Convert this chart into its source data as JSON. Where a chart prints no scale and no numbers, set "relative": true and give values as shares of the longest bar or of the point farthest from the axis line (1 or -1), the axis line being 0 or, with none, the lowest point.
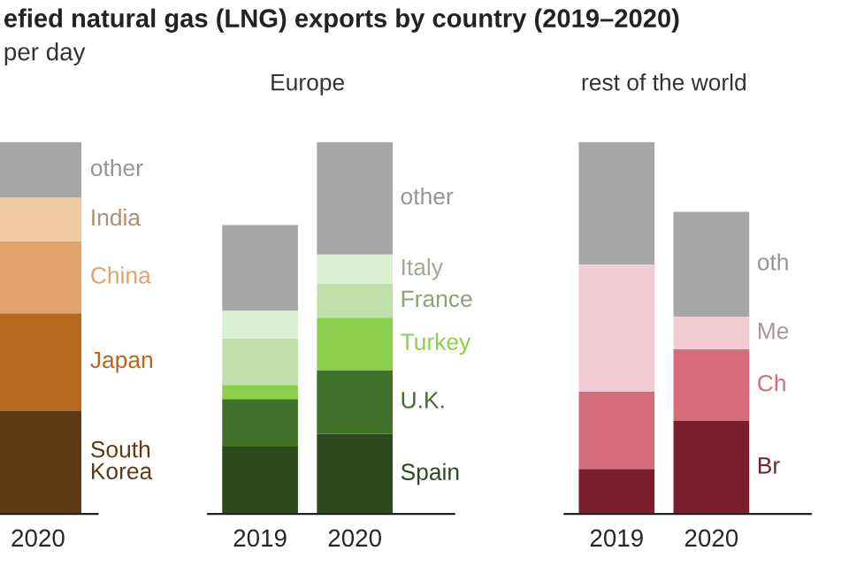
{
  "chart_data": [
    {
      "type": "bar",
      "stacked": true,
      "relative": true,
      "title": "efied natural gas (LNG) exports by country (2019–2020)",
      "subtitle": "per day",
      "categories": [
        "2020"
      ],
      "series": [
        {
          "name": "South Korea",
          "color": "#5e3a17",
          "values": [
            0.278
          ]
        },
        {
          "name": "Japan",
          "color": "#b8671f",
          "values": [
            0.262
          ]
        },
        {
          "name": "China",
          "color": "#e0a36a",
          "values": [
            0.193
          ]
        },
        {
          "name": "India",
          "color": "#efc9a0",
          "values": [
            0.118
          ]
        },
        {
          "name": "other",
          "color": "#a6a6a6",
          "values": [
            0.149
          ]
        }
      ]
    },
    {
      "type": "bar",
      "stacked": true,
      "relative": true,
      "title": "Europe",
      "categories": [
        "2019",
        "2020"
      ],
      "series": [
        {
          "name": "Spain",
          "color": "#2d4a1e",
          "values": [
            0.181,
            0.215
          ]
        },
        {
          "name": "U.K.",
          "color": "#3f7128",
          "values": [
            0.128,
            0.172
          ]
        },
        {
          "name": "Turkey",
          "color": "#8ccf4a",
          "values": [
            0.038,
            0.141
          ]
        },
        {
          "name": "France",
          "color": "#bfe0a8",
          "values": [
            0.125,
            0.091
          ]
        },
        {
          "name": "Italy",
          "color": "#dcefd0",
          "values": [
            0.075,
            0.079
          ]
        },
        {
          "name": "other",
          "color": "#a6a6a6",
          "values": [
            0.23,
            0.302
          ]
        }
      ]
    },
    {
      "type": "bar",
      "stacked": true,
      "relative": true,
      "title": "rest of the world",
      "categories": [
        "2019",
        "2020"
      ],
      "series": [
        {
          "name": "Br",
          "color": "#7a1f2b",
          "values": [
            0.121,
            0.25
          ]
        },
        {
          "name": "Ch",
          "color": "#d56d7b",
          "values": [
            0.209,
            0.193
          ]
        },
        {
          "name": "Me",
          "color": "#f3ccd3",
          "values": [
            0.341,
            0.088
          ]
        },
        {
          "name": "oth",
          "color": "#a6a6a6",
          "values": [
            0.329,
            0.282
          ]
        }
      ]
    }
  ]
}
